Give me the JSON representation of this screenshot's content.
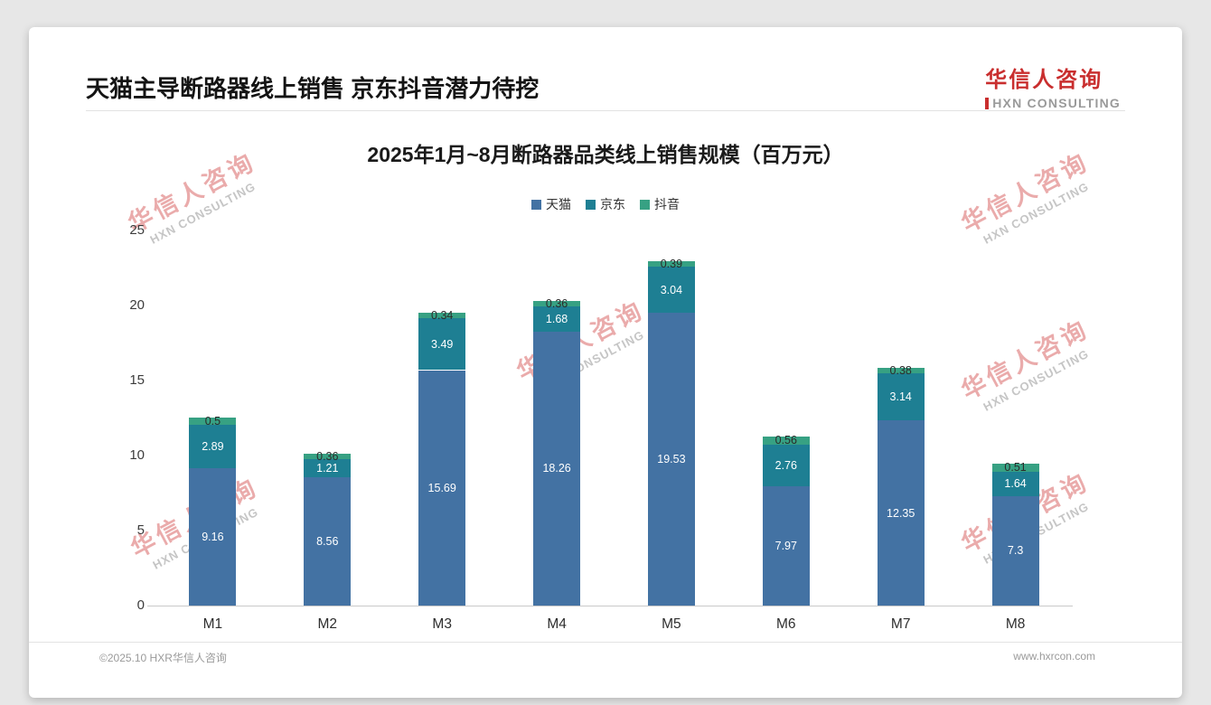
{
  "header": {
    "title": "天猫主导断路器线上销售 京东抖音潜力待挖",
    "logo_cn": "华信人咨询",
    "logo_en": "HXN CONSULTING"
  },
  "footer": {
    "copyright": "©2025.10 HXR华信人咨询",
    "website": "www.hxrcon.com"
  },
  "watermark": {
    "cn": "华信人咨询",
    "en": "HXN CONSULTING"
  },
  "chart_data": {
    "type": "bar",
    "stacked": true,
    "title": "2025年1月~8月断路器品类线上销售规模（百万元）",
    "unit": "百万元",
    "categories": [
      "M1",
      "M2",
      "M3",
      "M4",
      "M5",
      "M6",
      "M7",
      "M8"
    ],
    "series": [
      {
        "name": "天猫",
        "color": "#4372a3",
        "label_color": "#ffffff",
        "values": [
          9.16,
          8.56,
          15.69,
          18.26,
          19.53,
          7.97,
          12.35,
          7.3
        ]
      },
      {
        "name": "京东",
        "color": "#1e7f93",
        "label_color": "#ffffff",
        "values": [
          2.89,
          1.21,
          3.49,
          1.68,
          3.04,
          2.76,
          3.14,
          1.64
        ]
      },
      {
        "name": "抖音",
        "color": "#37a183",
        "label_color": "#2b2b2b",
        "values": [
          0.5,
          0.36,
          0.34,
          0.36,
          0.39,
          0.56,
          0.38,
          0.51
        ]
      }
    ],
    "ylim": [
      0,
      25
    ],
    "yticks": [
      0,
      5,
      10,
      15,
      20,
      25
    ],
    "legend_position": "top",
    "grid": false
  }
}
